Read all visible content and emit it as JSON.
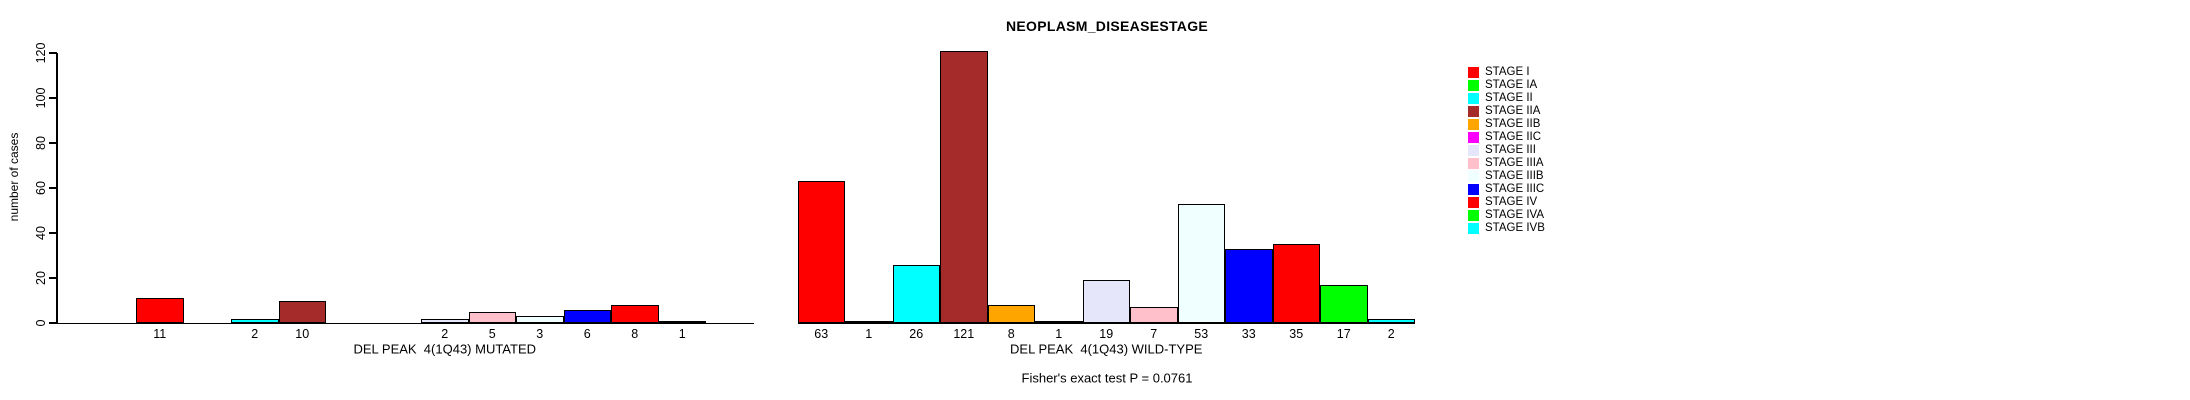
{
  "chart_data": {
    "type": "bar",
    "title": "NEOPLASM_DISEASESTAGE",
    "ylabel": "number of cases",
    "footer": "Fisher's exact test P = 0.0761",
    "ylim": [
      0,
      120
    ],
    "yticks": [
      0,
      20,
      40,
      60,
      80,
      100,
      120
    ],
    "grid": false,
    "legend_position": "right",
    "stages": [
      {
        "name": "STAGE I",
        "color": "#FF0000"
      },
      {
        "name": "STAGE IA",
        "color": "#00FF00"
      },
      {
        "name": "STAGE II",
        "color": "#00FFFF"
      },
      {
        "name": "STAGE IIA",
        "color": "#A52A2A"
      },
      {
        "name": "STAGE IIB",
        "color": "#FFA500"
      },
      {
        "name": "STAGE IIC",
        "color": "#FF00FF"
      },
      {
        "name": "STAGE III",
        "color": "#E6E6FA"
      },
      {
        "name": "STAGE IIIA",
        "color": "#FFC0CB"
      },
      {
        "name": "STAGE IIIB",
        "color": "#F0FFFF"
      },
      {
        "name": "STAGE IIIC",
        "color": "#0000FF"
      },
      {
        "name": "STAGE IV",
        "color": "#FF0000"
      },
      {
        "name": "STAGE IVA",
        "color": "#00FF00"
      },
      {
        "name": "STAGE IVB",
        "color": "#00FFFF"
      }
    ],
    "groups": [
      {
        "label": "DEL PEAK  4(1Q43) MUTATED",
        "values": [
          11,
          0,
          2,
          10,
          0,
          0,
          2,
          5,
          3,
          6,
          8,
          1,
          0
        ]
      },
      {
        "label": "DEL PEAK  4(1Q43) WILD-TYPE",
        "values": [
          63,
          1,
          26,
          121,
          8,
          1,
          19,
          7,
          53,
          33,
          35,
          17,
          2
        ]
      }
    ]
  }
}
